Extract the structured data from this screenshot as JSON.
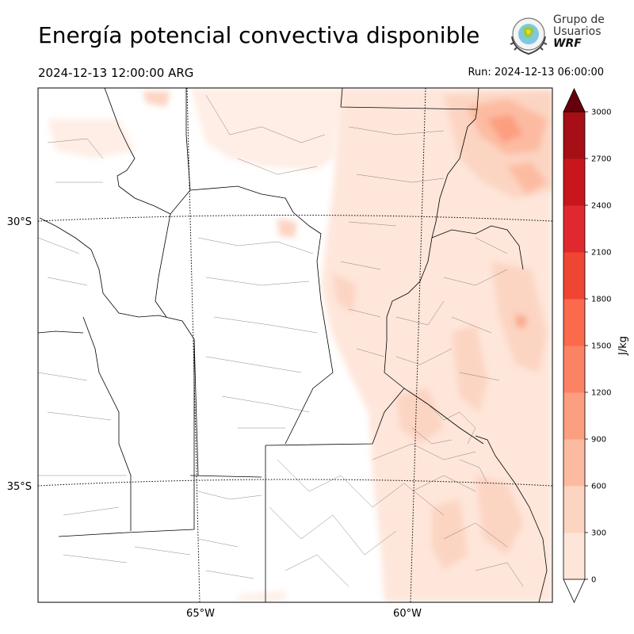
{
  "header": {
    "title": "Energía potencial convectiva disponible",
    "valid_time": "2024-12-13 12:00:00 ARG",
    "run_time": "Run: 2024-12-13 06:00:00"
  },
  "logo": {
    "line1": "Grupo de",
    "line2": "Usuarios",
    "line3": "WRF"
  },
  "map": {
    "lat_labels": [
      "30°S",
      "35°S"
    ],
    "lon_labels": [
      "65°W",
      "60°W"
    ],
    "field": "CAPE",
    "max_region": "northeast (Corrientes / Misiones)",
    "typical_values": "0–600 J/kg, mostly eastern half"
  },
  "colorbar": {
    "unit": "J/kg",
    "ticks": [
      "0",
      "300",
      "600",
      "900",
      "1200",
      "1500",
      "1800",
      "2100",
      "2400",
      "2700",
      "3000"
    ],
    "colors": [
      "#fee5d9",
      "#fcd4c2",
      "#fcbba1",
      "#fc9e80",
      "#fc8264",
      "#fb6a4a",
      "#ef4533",
      "#e0292e",
      "#c8171c",
      "#a50f15",
      "#7d0710"
    ],
    "over_color": "#67000d",
    "under_color": "#ffffff"
  }
}
